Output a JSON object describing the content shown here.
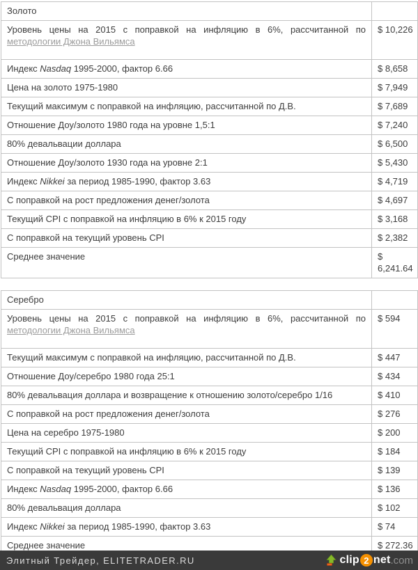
{
  "page": {
    "background": "#ffffff",
    "text_color": "#3d3d3d",
    "border_color": "#c2c2c2",
    "link_color": "#9b9b9b"
  },
  "tables": [
    {
      "title": "Золото",
      "rows": [
        {
          "justify": true,
          "tall": true,
          "label": [
            {
              "t": "Уровень цены на 2015 с поправкой на инфляцию в 6%, рассчитанной по ",
              "s": "n"
            },
            {
              "t": "методологии Джона Вильямса",
              "s": "l"
            }
          ],
          "value": "$ 10,226"
        },
        {
          "label": [
            {
              "t": "Индекс ",
              "s": "n"
            },
            {
              "t": "Nasdaq",
              "s": "i"
            },
            {
              "t": " 1995-2000, фактор 6.66",
              "s": "n"
            }
          ],
          "value": "$ 8,658"
        },
        {
          "label": [
            {
              "t": "Цена на золото 1975-1980",
              "s": "n"
            }
          ],
          "value": "$ 7,949"
        },
        {
          "label": [
            {
              "t": "Текущий максимум с поправкой на инфляцию, рассчитанной по Д.В.",
              "s": "n"
            }
          ],
          "value": "$ 7,689"
        },
        {
          "label": [
            {
              "t": "Отношение Доу/золото 1980 года на уровне 1,5:1",
              "s": "n"
            }
          ],
          "value": "$ 7,240"
        },
        {
          "label": [
            {
              "t": "80% девальвации доллара",
              "s": "n"
            }
          ],
          "value": "$ 6,500"
        },
        {
          "label": [
            {
              "t": "Отношение Доу/золото 1930 года на уровне 2:1",
              "s": "n"
            }
          ],
          "value": "$ 5,430"
        },
        {
          "label": [
            {
              "t": "Индекс ",
              "s": "n"
            },
            {
              "t": "Nikkei",
              "s": "i"
            },
            {
              "t": " за период 1985-1990, фактор 3.63",
              "s": "n"
            }
          ],
          "value": "$ 4,719"
        },
        {
          "label": [
            {
              "t": "С поправкой на рост предложения денег/золота",
              "s": "n"
            }
          ],
          "value": "$ 4,697"
        },
        {
          "label": [
            {
              "t": "Текущий CPI с поправкой на инфляцию в 6% к 2015 году",
              "s": "n"
            }
          ],
          "value": "$ 3,168"
        },
        {
          "label": [
            {
              "t": "С поправкой на текущий уровень CPI",
              "s": "n"
            }
          ],
          "value": "$ 2,382"
        },
        {
          "label": [
            {
              "t": "Среднее значение",
              "s": "n"
            }
          ],
          "value": "$ 6,241.64"
        }
      ]
    },
    {
      "title": "Серебро",
      "rows": [
        {
          "justify": true,
          "tall": true,
          "label": [
            {
              "t": "Уровень цены на 2015 с поправкой на инфляцию в 6%, рассчитанной по ",
              "s": "n"
            },
            {
              "t": "методологии Джона Вильямса",
              "s": "l"
            }
          ],
          "value": "$ 594"
        },
        {
          "label": [
            {
              "t": "Текущий максимум с поправкой на инфляцию, рассчитанной по Д.В.",
              "s": "n"
            }
          ],
          "value": "$ 447"
        },
        {
          "label": [
            {
              "t": "Отношение Доу/серебро 1980 года 25:1",
              "s": "n"
            }
          ],
          "value": "$ 434"
        },
        {
          "label": [
            {
              "t": "80% девальвация доллара и возвращение к отношению золото/серебро 1/16",
              "s": "n"
            }
          ],
          "value": "$ 410"
        },
        {
          "label": [
            {
              "t": "С поправкой на рост предложения денег/золота",
              "s": "n"
            }
          ],
          "value": "$ 276"
        },
        {
          "label": [
            {
              "t": "Цена на серебро 1975-1980",
              "s": "n"
            }
          ],
          "value": "$ 200"
        },
        {
          "label": [
            {
              "t": "Текущий CPI с поправкой на инфляцию в 6% к 2015 году",
              "s": "n"
            }
          ],
          "value": "$ 184"
        },
        {
          "label": [
            {
              "t": "С поправкой на текущий уровень CPI",
              "s": "n"
            }
          ],
          "value": "$ 139"
        },
        {
          "label": [
            {
              "t": "Индекс ",
              "s": "n"
            },
            {
              "t": "Nasdaq",
              "s": "i"
            },
            {
              "t": " 1995-2000, фактор 6.66",
              "s": "n"
            }
          ],
          "value": "$ 136"
        },
        {
          "label": [
            {
              "t": "80% девальвация доллара",
              "s": "n"
            }
          ],
          "value": "$ 102"
        },
        {
          "label": [
            {
              "t": "Индекс ",
              "s": "n"
            },
            {
              "t": "Nikkei",
              "s": "i"
            },
            {
              "t": " за период 1985-1990, фактор 3.63",
              "s": "n"
            }
          ],
          "value": "$ 74"
        },
        {
          "label": [
            {
              "t": "Среднее значение",
              "s": "n"
            }
          ],
          "value": "$ 272.36"
        }
      ]
    }
  ],
  "footer": {
    "credit": "Элитный Трейдер, ELITETRADER.RU",
    "background": "#3a3a3a",
    "logo": {
      "part1": "clip",
      "part2": "2",
      "part3": "net",
      "part4": ".com",
      "circle_color": "#f59000",
      "arrow_green": "#86b829",
      "arrow_base": "#e8641b"
    }
  }
}
